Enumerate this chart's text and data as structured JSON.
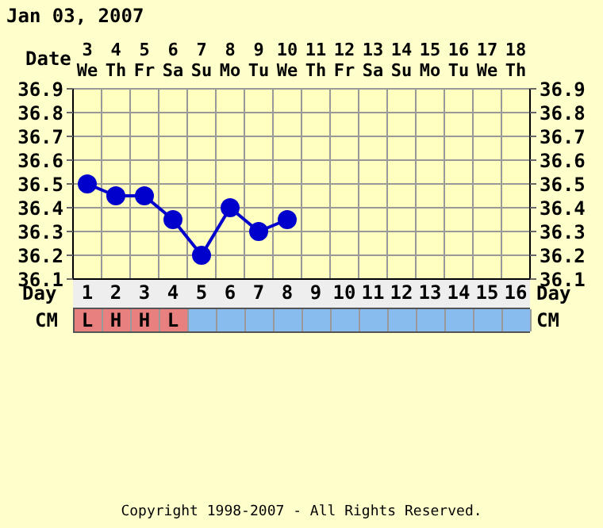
{
  "chart_data": {
    "type": "line",
    "title": "Jan 03, 2007",
    "x": [
      1,
      2,
      3,
      4,
      5,
      6,
      7,
      8
    ],
    "series": [
      {
        "color": "#0000cc",
        "values": [
          36.5,
          36.45,
          36.45,
          36.35,
          36.2,
          36.4,
          36.3,
          36.35
        ]
      }
    ],
    "xlabel": "Day",
    "x2label": "Date",
    "xlim": [
      0.5,
      16.5
    ],
    "xticks": [
      1,
      2,
      3,
      4,
      5,
      6,
      7,
      8,
      9,
      10,
      11,
      12,
      13,
      14,
      15,
      16
    ],
    "x2lim": [
      2.5,
      18.5
    ],
    "x2ticks": [
      {
        "value": 3,
        "label": "3\nWe"
      },
      {
        "value": 4,
        "label": "4\nTh"
      },
      {
        "value": 5,
        "label": "5\nFr"
      },
      {
        "value": 6,
        "label": "6\nSa"
      },
      {
        "value": 7,
        "label": "7\nSu"
      },
      {
        "value": 8,
        "label": "8\nMo"
      },
      {
        "value": 9,
        "label": "9\nTu"
      },
      {
        "value": 10,
        "label": "10\nWe"
      },
      {
        "value": 11,
        "label": "11\nTh"
      },
      {
        "value": 12,
        "label": "12\nFr"
      },
      {
        "value": 13,
        "label": "13\nSa"
      },
      {
        "value": 14,
        "label": "14\nSu"
      },
      {
        "value": 15,
        "label": "15\nMo"
      },
      {
        "value": 16,
        "label": "16\nTu"
      },
      {
        "value": 17,
        "label": "17\nWe"
      },
      {
        "value": 18,
        "label": "18\nTh"
      }
    ],
    "ylim": [
      36.1,
      36.9
    ],
    "yticks": [
      36.1,
      36.2,
      36.3,
      36.4,
      36.5,
      36.6,
      36.7,
      36.8,
      36.9
    ],
    "y2lim": [
      36.1,
      36.9
    ],
    "y2ticks": [
      36.1,
      36.2,
      36.3,
      36.4,
      36.5,
      36.6,
      36.7,
      36.8,
      36.9
    ],
    "grid": true,
    "marker": "circle",
    "line_style": "solid",
    "annotations": [
      "CM",
      "L",
      "H",
      "H",
      "L",
      "Copyright 1998-2007 - All Rights Reserved."
    ]
  }
}
